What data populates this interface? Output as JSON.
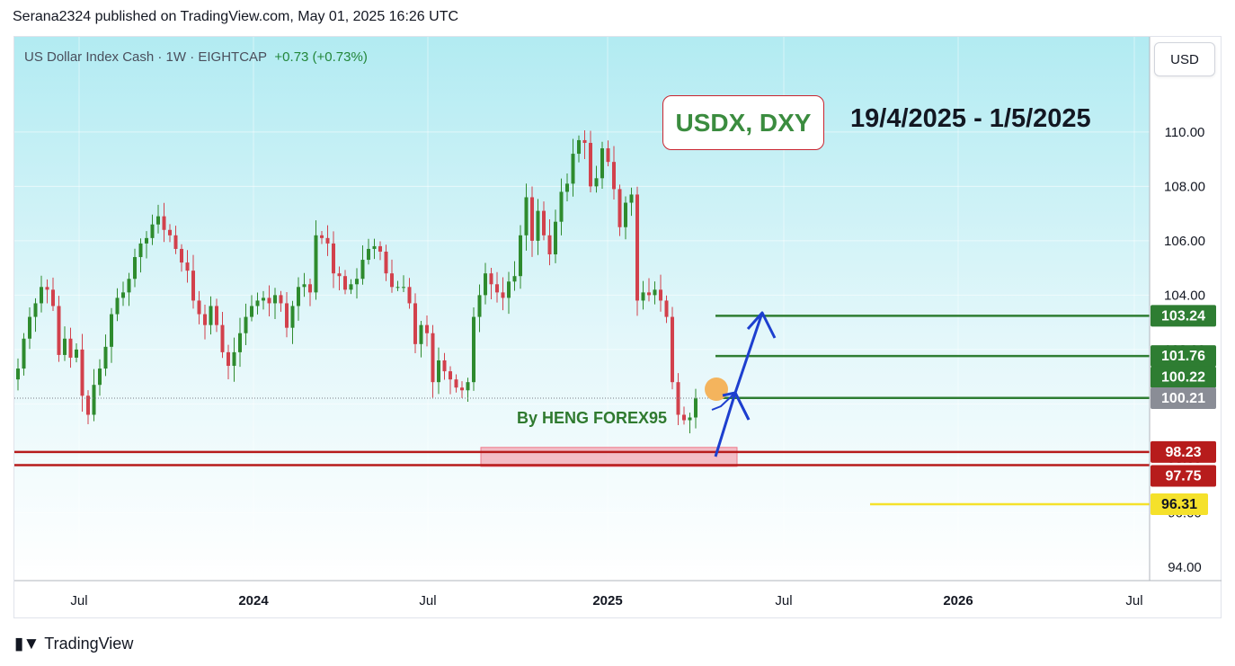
{
  "header": {
    "published_line": "Serana2324 published on TradingView.com, May 01, 2025 16:26 UTC",
    "symbol": "US Dollar Index Cash · 1W · EIGHTCAP",
    "change": "+0.73 (+0.73%)",
    "currency_button": "USD"
  },
  "annotations": {
    "title": "USDX, DXY",
    "date_range": "19/4/2025 - 1/5/2025",
    "author": "By HENG FOREX95"
  },
  "footer": {
    "brand": "TradingView"
  },
  "colors": {
    "up": "#2e8b2e",
    "down": "#d2414c",
    "green_level": "#2e7d32",
    "red_level": "#b71c1c",
    "yellow_level": "#f5e12b",
    "arrow": "#1d3fcf",
    "circle": "#f4b45d"
  },
  "chart_data": {
    "type": "candlestick",
    "title": "",
    "xlabel": "",
    "ylabel": "",
    "ylim": [
      93.5,
      113.5
    ],
    "y_ticks": [
      94,
      96,
      98,
      100,
      102,
      104,
      106,
      108,
      110
    ],
    "x_ticks": [
      {
        "label": "Jul",
        "bold": false
      },
      {
        "label": "2024",
        "bold": true
      },
      {
        "label": "Jul",
        "bold": false
      },
      {
        "label": "2025",
        "bold": true
      },
      {
        "label": "Jul",
        "bold": false
      },
      {
        "label": "2026",
        "bold": true
      },
      {
        "label": "Jul",
        "bold": false
      }
    ],
    "last_price": "100.21",
    "levels": [
      {
        "label": "103.24",
        "value": 103.24,
        "kind": "green"
      },
      {
        "label": "101.76",
        "value": 101.76,
        "kind": "green"
      },
      {
        "label": "100.22",
        "value": 100.22,
        "kind": "green"
      },
      {
        "label": "100.21",
        "value": 100.21,
        "kind": "price"
      },
      {
        "label": "98.23",
        "value": 98.23,
        "kind": "red"
      },
      {
        "label": "97.75",
        "value": 97.75,
        "kind": "red"
      },
      {
        "label": "96.31",
        "value": 96.31,
        "kind": "yellow"
      }
    ],
    "support_zone": [
      97.7,
      98.4
    ],
    "closes": [
      101.3,
      102.4,
      103.2,
      103.7,
      104.3,
      104.2,
      103.6,
      101.8,
      102.4,
      101.7,
      102.0,
      100.3,
      99.6,
      100.7,
      101.3,
      102.1,
      103.3,
      103.9,
      104.1,
      104.6,
      105.4,
      105.9,
      106.1,
      106.6,
      106.9,
      106.4,
      106.2,
      105.7,
      105.2,
      104.9,
      103.8,
      103.3,
      102.9,
      103.6,
      102.9,
      101.9,
      101.4,
      101.9,
      102.6,
      103.2,
      103.6,
      103.8,
      103.9,
      103.7,
      104.0,
      103.7,
      102.8,
      103.6,
      104.3,
      104.4,
      104.1,
      106.2,
      106.1,
      105.9,
      104.8,
      104.7,
      104.2,
      104.4,
      104.6,
      105.3,
      105.7,
      105.8,
      105.6,
      104.8,
      104.3,
      104.3,
      104.3,
      103.7,
      102.2,
      102.9,
      102.6,
      100.8,
      101.6,
      101.2,
      100.9,
      100.6,
      100.5,
      100.8,
      103.2,
      104.0,
      104.8,
      104.4,
      104.1,
      103.9,
      104.5,
      104.7,
      106.2,
      107.6,
      106.0,
      107.1,
      106.2,
      105.5,
      106.7,
      107.8,
      108.1,
      109.2,
      109.7,
      109.6,
      108.0,
      108.3,
      109.4,
      108.9,
      107.9,
      106.5,
      107.4,
      107.7,
      103.8,
      104.1,
      104.0,
      104.2,
      103.8,
      103.2,
      100.8,
      99.6,
      99.4,
      99.5,
      100.2
    ]
  }
}
